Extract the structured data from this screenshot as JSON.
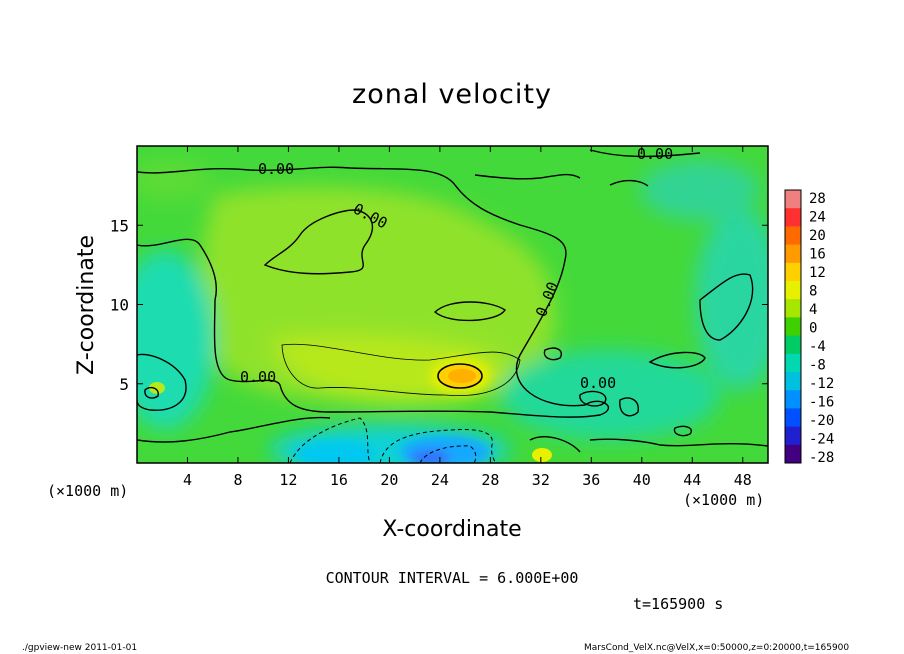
{
  "chart_data": {
    "type": "heatmap",
    "title": "zonal velocity",
    "xlabel": "X-coordinate",
    "ylabel": "Z-coordinate",
    "x_unit": "(×1000 m)",
    "y_unit": "(×1000 m)",
    "xlim": [
      0,
      50
    ],
    "ylim": [
      0,
      20
    ],
    "x_ticks": [
      4,
      8,
      12,
      16,
      20,
      24,
      28,
      32,
      36,
      40,
      44,
      48
    ],
    "y_ticks": [
      5,
      10,
      15
    ],
    "colorbar": {
      "levels": [
        28,
        24,
        20,
        16,
        12,
        8,
        4,
        0,
        -4,
        -8,
        -12,
        -16,
        -20,
        -24,
        -28
      ],
      "colors": [
        "#f08080",
        "#ff3030",
        "#ff6a00",
        "#ff9a00",
        "#ffd000",
        "#e6f000",
        "#a6e600",
        "#3fd000",
        "#00cc66",
        "#00d8b0",
        "#00c0e0",
        "#0090ff",
        "#0050ff",
        "#2020d0",
        "#400080"
      ]
    },
    "contour_labels": [
      "0.00",
      "0.00",
      "0.00",
      "0.00",
      "0.00",
      "0.00"
    ],
    "contour_interval_text": "CONTOUR INTERVAL = 6.000E+00",
    "time_text": "t=165900 s"
  },
  "footer": {
    "left": "./gpview-new  2011-01-01",
    "right": "MarsCond_VelX.nc@VelX,x=0:50000,z=0:20000,t=165900"
  },
  "page_colors": {
    "background": "#ffffff",
    "field_base": "#44d93a"
  }
}
